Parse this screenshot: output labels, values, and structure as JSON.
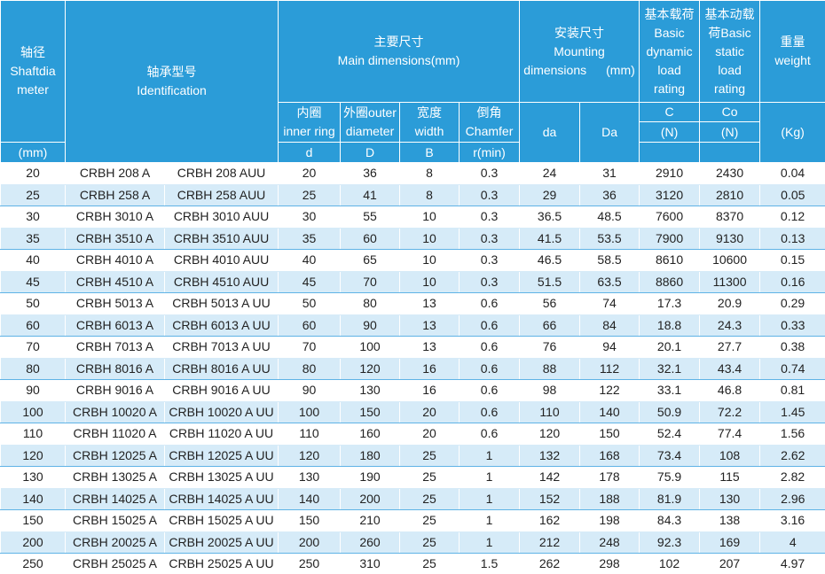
{
  "header": {
    "shaft": [
      "轴径",
      "Shaftdia",
      "meter"
    ],
    "shaft_unit": "(mm)",
    "identification": [
      "轴承型号",
      "Identification"
    ],
    "main": [
      "主要尺寸",
      "Main dimensions(mm)"
    ],
    "inner": [
      "内圈",
      "inner ring"
    ],
    "inner_sym": "d",
    "outer": [
      "外圈outer",
      "diameter"
    ],
    "outer_sym": "D",
    "width": [
      "宽度",
      "width"
    ],
    "width_sym": "B",
    "chamfer": [
      "倒角",
      "Chamfer"
    ],
    "chamfer_sym": "r(min)",
    "mounting": [
      "安装尺寸",
      "Mounting",
      "dimensions",
      "(mm)"
    ],
    "da": "da",
    "Da": "Da",
    "dynamic": [
      "基本载荷",
      "Basic",
      "dynamic",
      "load",
      "rating"
    ],
    "dynamic_sym": "C",
    "dynamic_unit": "(N)",
    "static": [
      "基本动载",
      "荷Basic",
      "static",
      "load",
      "rating"
    ],
    "static_sym": "Co",
    "static_unit": "(N)",
    "weight": [
      "重量",
      "weight"
    ],
    "weight_unit": "(Kg)"
  },
  "table": {
    "rows": [
      [
        20,
        "CRBH 208 A",
        "CRBH 208 AUU",
        20,
        36,
        8,
        0.3,
        24,
        31,
        2910,
        2430,
        0.04
      ],
      [
        25,
        "CRBH 258 A",
        "CRBH 258 AUU",
        25,
        41,
        8,
        0.3,
        29,
        36,
        3120,
        2810,
        0.05
      ],
      [
        30,
        "CRBH 3010 A",
        "CRBH 3010 AUU",
        30,
        55,
        10,
        0.3,
        36.5,
        48.5,
        7600,
        8370,
        0.12
      ],
      [
        35,
        "CRBH 3510 A",
        "CRBH 3510 AUU",
        35,
        60,
        10,
        0.3,
        41.5,
        53.5,
        7900,
        9130,
        0.13
      ],
      [
        40,
        "CRBH 4010 A",
        "CRBH 4010 AUU",
        40,
        65,
        10,
        0.3,
        46.5,
        58.5,
        8610,
        10600,
        0.15
      ],
      [
        45,
        "CRBH 4510 A",
        "CRBH 4510 AUU",
        45,
        70,
        10,
        0.3,
        51.5,
        63.5,
        8860,
        11300,
        0.16
      ],
      [
        50,
        "CRBH 5013 A",
        "CRBH 5013 A UU",
        50,
        80,
        13,
        0.6,
        56,
        74,
        17.3,
        20.9,
        0.29
      ],
      [
        60,
        "CRBH 6013 A",
        "CRBH 6013 A UU",
        60,
        90,
        13,
        0.6,
        66,
        84,
        18.8,
        24.3,
        0.33
      ],
      [
        70,
        "CRBH 7013 A",
        "CRBH 7013 A UU",
        70,
        100,
        13,
        0.6,
        76,
        94,
        20.1,
        27.7,
        0.38
      ],
      [
        80,
        "CRBH 8016 A",
        "CRBH 8016 A UU",
        80,
        120,
        16,
        0.6,
        88,
        112,
        32.1,
        43.4,
        0.74
      ],
      [
        90,
        "CRBH 9016 A",
        "CRBH 9016 A UU",
        90,
        130,
        16,
        0.6,
        98,
        122,
        33.1,
        46.8,
        0.81
      ],
      [
        100,
        "CRBH 10020 A",
        "CRBH 10020 A UU",
        100,
        150,
        20,
        0.6,
        110,
        140,
        50.9,
        72.2,
        1.45
      ],
      [
        110,
        "CRBH 11020 A",
        "CRBH 11020 A UU",
        110,
        160,
        20,
        0.6,
        120,
        150,
        52.4,
        77.4,
        1.56
      ],
      [
        120,
        "CRBH 12025 A",
        "CRBH 12025 A UU",
        120,
        180,
        25,
        1,
        132,
        168,
        73.4,
        108,
        2.62
      ],
      [
        130,
        "CRBH 13025 A",
        "CRBH 13025 A UU",
        130,
        190,
        25,
        1,
        142,
        178,
        75.9,
        115,
        2.82
      ],
      [
        140,
        "CRBH 14025 A",
        "CRBH 14025 A UU",
        140,
        200,
        25,
        1,
        152,
        188,
        81.9,
        130,
        2.96
      ],
      [
        150,
        "CRBH 15025 A",
        "CRBH 15025 A UU",
        150,
        210,
        25,
        1,
        162,
        198,
        84.3,
        138,
        3.16
      ],
      [
        200,
        "CRBH 20025 A",
        "CRBH 20025 A UU",
        200,
        260,
        25,
        1,
        212,
        248,
        92.3,
        169,
        4
      ],
      [
        250,
        "CRBH 25025 A",
        "CRBH 25025 A UU",
        250,
        310,
        25,
        1.5,
        262,
        298,
        102,
        207,
        4.97
      ]
    ]
  }
}
